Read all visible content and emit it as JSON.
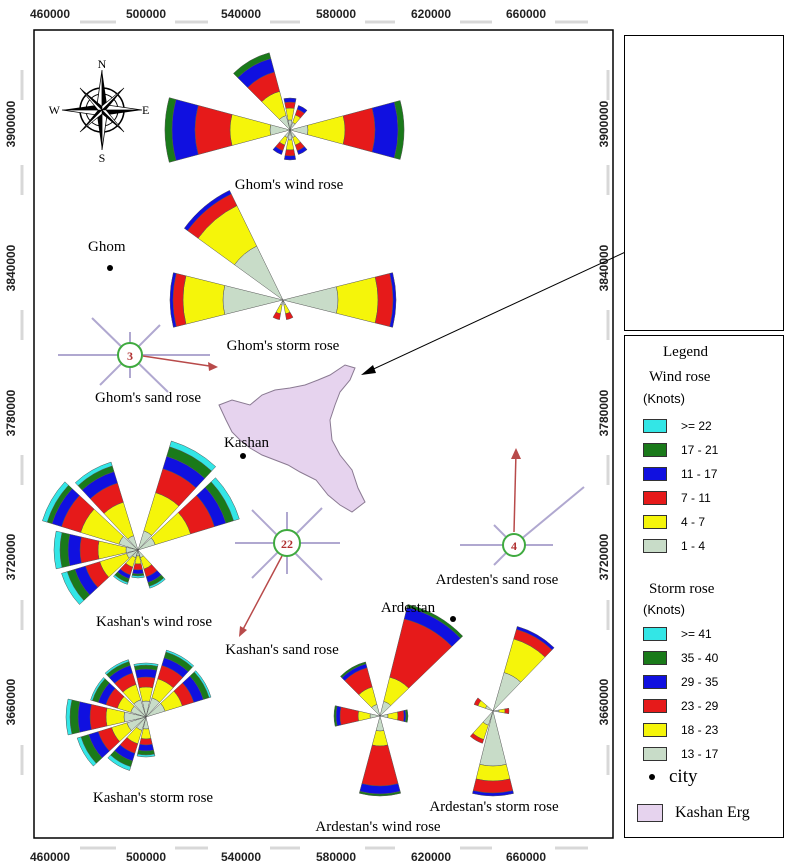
{
  "x_ticks": [
    "460000",
    "500000",
    "540000",
    "580000",
    "620000",
    "660000"
  ],
  "y_ticks": [
    "3900000",
    "3840000",
    "3780000",
    "3720000",
    "3660000"
  ],
  "compass": {
    "n": "N",
    "s": "S",
    "e": "E",
    "w": "W"
  },
  "labels": {
    "ghom_wind": "Ghom's wind rose",
    "ghom_storm": "Ghom's storm rose",
    "ghom_sand": "Ghom's sand rose",
    "ghom_city": "Ghom",
    "kashan_city": "Kashan",
    "kashan_wind": "Kashan's wind rose",
    "kashan_sand": "Kashan's sand rose",
    "kashan_storm": "Kashan's storm rose",
    "ardestan_city": "Ardestan",
    "ardesten_sand": "Ardesten's sand rose",
    "ardestan_wind": "Ardestan's wind rose",
    "ardestan_storm": "Ardestan's storm rose"
  },
  "sand_values": {
    "ghom": "3",
    "kashan": "22",
    "ardestan": "4"
  },
  "legend": {
    "title": "Legend",
    "wind_title": "Wind rose",
    "wind_unit": "(Knots)",
    "wind_items": [
      {
        "label": ">= 22",
        "color": "#33e6e6"
      },
      {
        "label": "17 - 21",
        "color": "#1a7a1a"
      },
      {
        "label": "11 - 17",
        "color": "#1010e0"
      },
      {
        "label": "7 - 11",
        "color": "#e61a1a"
      },
      {
        "label": "4 - 7",
        "color": "#f5f50a"
      },
      {
        "label": "1 - 4",
        "color": "#c8dcc8"
      }
    ],
    "storm_title": "Storm rose",
    "storm_unit": "(Knots)",
    "storm_items": [
      {
        "label": ">= 41",
        "color": "#33e6e6"
      },
      {
        "label": "35 - 40",
        "color": "#1a7a1a"
      },
      {
        "label": "29 - 35",
        "color": "#1010e0"
      },
      {
        "label": "23 - 29",
        "color": "#e61a1a"
      },
      {
        "label": "18 - 23",
        "color": "#f5f50a"
      },
      {
        "label": "13 - 17",
        "color": "#c8dcc8"
      }
    ],
    "city_label": "city",
    "erg_label": "Kashan Erg",
    "erg_color": "#e6d3ee"
  }
}
